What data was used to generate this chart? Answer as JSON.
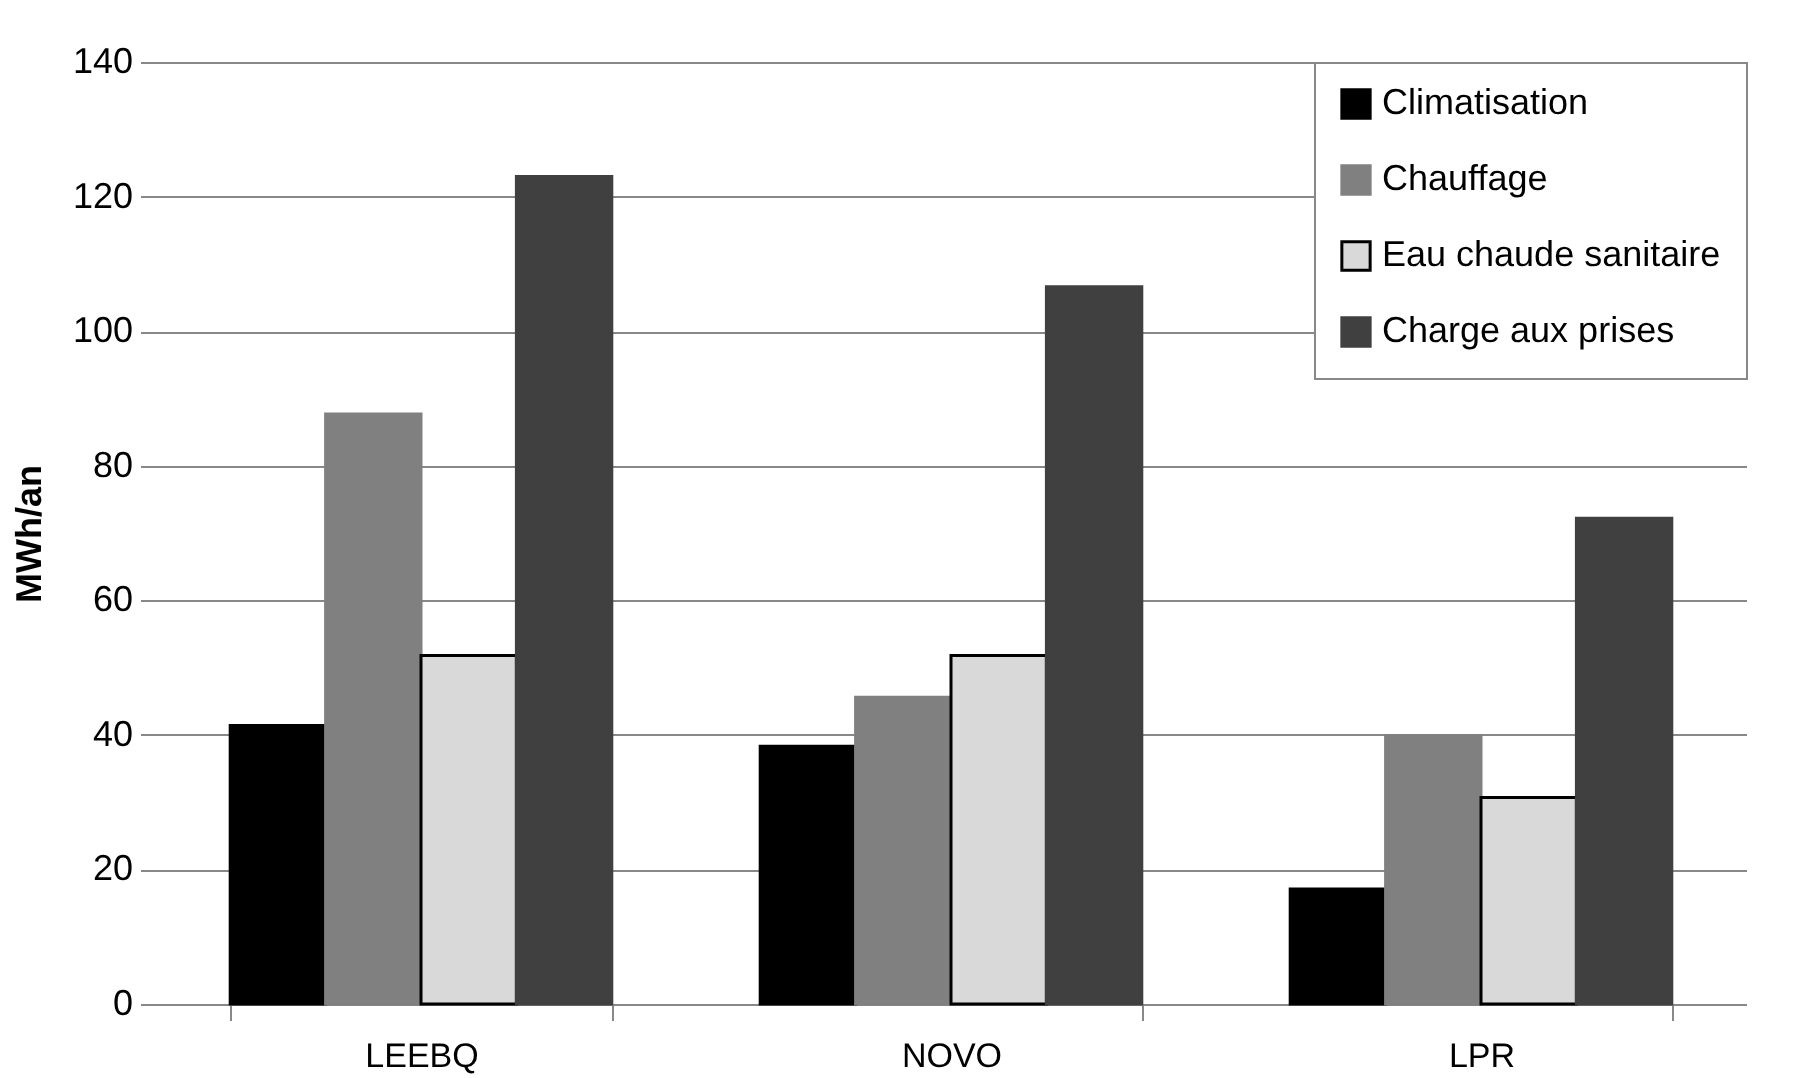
{
  "chart_data": {
    "type": "bar",
    "ylabel": "MWh/an",
    "categories": [
      "LEEBQ",
      "NOVO",
      "LPR"
    ],
    "series": [
      {
        "name": "Climatisation",
        "color": "#000000",
        "values": [
          41.4,
          38.3,
          17.1
        ]
      },
      {
        "name": "Chauffage",
        "color": "#808080",
        "values": [
          87.7,
          45.6,
          39.9
        ]
      },
      {
        "name": "Eau chaude sanitaire",
        "color": "#d9d9d9",
        "values": [
          51.8,
          51.8,
          30.7
        ]
      },
      {
        "name": "Charge aux prises",
        "color": "#404040",
        "values": [
          123,
          106.6,
          72.2
        ]
      }
    ],
    "ylim": [
      0,
      140
    ],
    "yticks": [
      0,
      20,
      40,
      60,
      80,
      100,
      120,
      140
    ],
    "grid": "y",
    "legend": "top right"
  }
}
